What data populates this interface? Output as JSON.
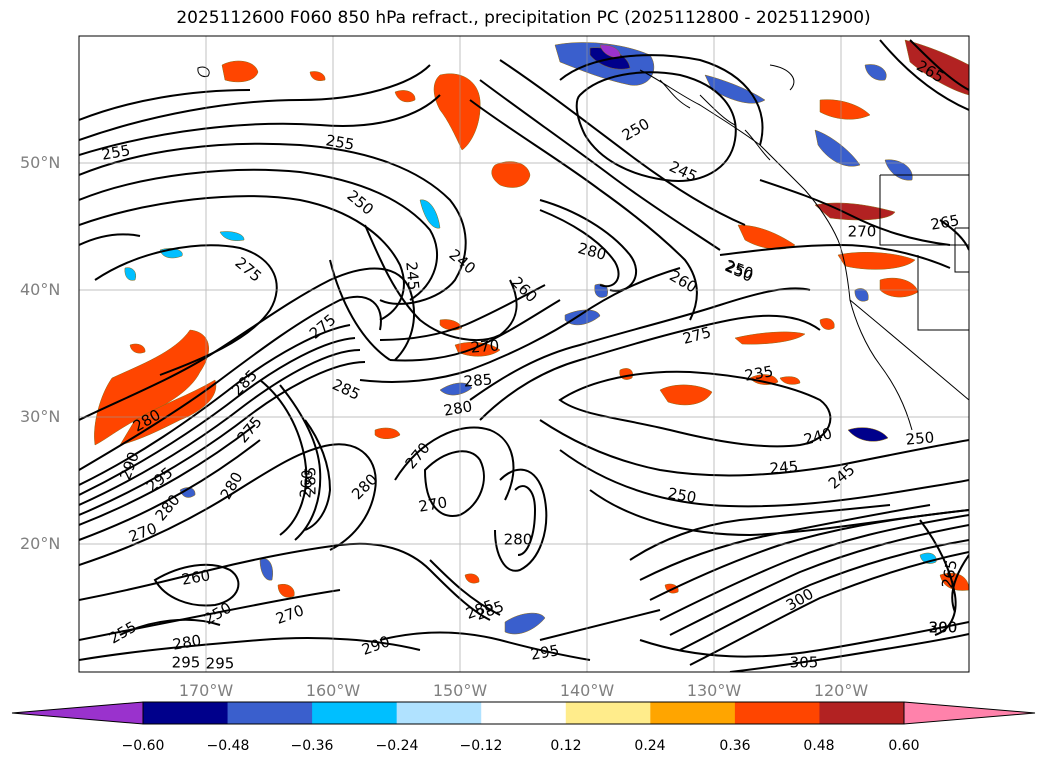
{
  "title": "2025112600 F060 850 hPa refract., precipitation PC (2025112800 - 2025112900)",
  "lat_labels": [
    "50°N",
    "40°N",
    "30°N",
    "20°N"
  ],
  "lon_labels": [
    "170°W",
    "160°W",
    "150°W",
    "140°W",
    "130°W",
    "120°W"
  ],
  "colorbar": {
    "colors": [
      "#9a32cd",
      "#00008b",
      "#3a5fcd",
      "#00bfff",
      "#b0e2ff",
      "#ffffff",
      "#ffec8b",
      "#ffa500",
      "#ff4500",
      "#b22222",
      "#ff82ab"
    ],
    "ticks": [
      "−0.60",
      "−0.48",
      "−0.36",
      "−0.24",
      "−0.12",
      "0.12",
      "0.24",
      "0.36",
      "0.48",
      "0.60"
    ]
  },
  "contour_labels": [
    "255",
    "255",
    "250",
    "245",
    "240",
    "260",
    "280",
    "250",
    "245",
    "260",
    "250",
    "275",
    "275",
    "275",
    "285",
    "285",
    "280",
    "270",
    "285",
    "270",
    "275",
    "280",
    "290",
    "295",
    "280",
    "285",
    "280",
    "260",
    "270",
    "280",
    "270",
    "260",
    "280",
    "235",
    "250",
    "240",
    "245",
    "245",
    "250",
    "250",
    "250",
    "285",
    "295",
    "290",
    "295",
    "255",
    "280",
    "270",
    "285",
    "295",
    "265",
    "300",
    "300",
    "305",
    "290",
    "265",
    "265",
    "270"
  ]
}
